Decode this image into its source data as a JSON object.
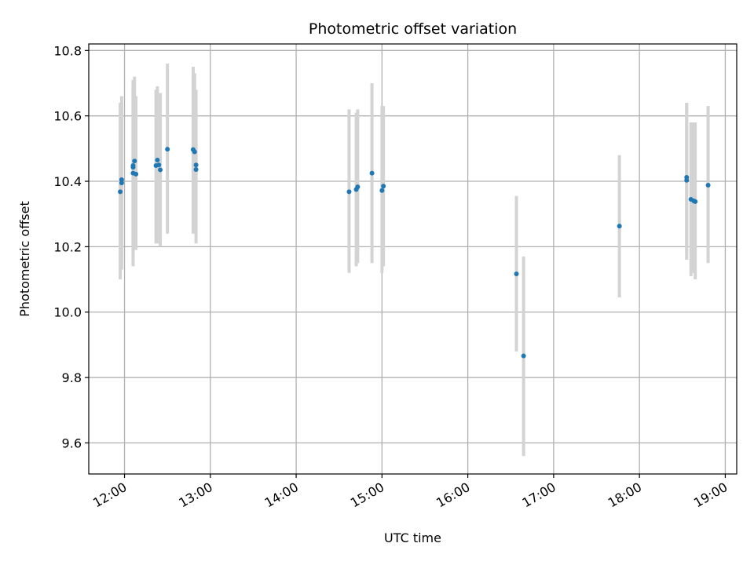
{
  "chart_data": {
    "type": "scatter",
    "title": "Photometric offset variation",
    "xlabel": "UTC time",
    "ylabel": "Photometric offset",
    "xlim": [
      "11:35",
      "19:08"
    ],
    "ylim": [
      9.505,
      10.82
    ],
    "grid": true,
    "x_ticks": [
      "12:00",
      "13:00",
      "14:00",
      "15:00",
      "16:00",
      "17:00",
      "18:00",
      "19:00"
    ],
    "y_ticks": [
      "9.6",
      "9.8",
      "10.0",
      "10.2",
      "10.4",
      "10.6",
      "10.8"
    ],
    "colors": {
      "points": "#1f77b4",
      "error_bars": "#d3d3d3",
      "grid": "#b0b0b0"
    },
    "series": [
      {
        "points": [
          {
            "x": "11:57",
            "y": 10.368,
            "ylow": 10.1,
            "yhigh": 10.64
          },
          {
            "x": "11:58",
            "y": 10.395,
            "ylow": 10.13,
            "yhigh": 10.66
          },
          {
            "x": "11:58",
            "y": 10.405,
            "ylow": 10.17,
            "yhigh": 10.64
          },
          {
            "x": "12:06",
            "y": 10.443,
            "ylow": 10.16,
            "yhigh": 10.71
          },
          {
            "x": "12:06",
            "y": 10.448,
            "ylow": 10.18,
            "yhigh": 10.7
          },
          {
            "x": "12:06",
            "y": 10.425,
            "ylow": 10.14,
            "yhigh": 10.7
          },
          {
            "x": "12:07",
            "y": 10.462,
            "ylow": 10.2,
            "yhigh": 10.72
          },
          {
            "x": "12:08",
            "y": 10.422,
            "ylow": 10.19,
            "yhigh": 10.66
          },
          {
            "x": "12:22",
            "y": 10.448,
            "ylow": 10.21,
            "yhigh": 10.68
          },
          {
            "x": "12:23",
            "y": 10.465,
            "ylow": 10.23,
            "yhigh": 10.69
          },
          {
            "x": "12:24",
            "y": 10.45,
            "ylow": 10.21,
            "yhigh": 10.67
          },
          {
            "x": "12:25",
            "y": 10.435,
            "ylow": 10.2,
            "yhigh": 10.67
          },
          {
            "x": "12:30",
            "y": 10.498,
            "ylow": 10.24,
            "yhigh": 10.76
          },
          {
            "x": "12:48",
            "y": 10.497,
            "ylow": 10.24,
            "yhigh": 10.75
          },
          {
            "x": "12:49",
            "y": 10.49,
            "ylow": 10.25,
            "yhigh": 10.73
          },
          {
            "x": "12:50",
            "y": 10.45,
            "ylow": 10.21,
            "yhigh": 10.68
          },
          {
            "x": "12:50",
            "y": 10.436,
            "ylow": 10.23,
            "yhigh": 10.62
          },
          {
            "x": "14:37",
            "y": 10.368,
            "ylow": 10.12,
            "yhigh": 10.62
          },
          {
            "x": "14:42",
            "y": 10.375,
            "ylow": 10.14,
            "yhigh": 10.61
          },
          {
            "x": "14:43",
            "y": 10.383,
            "ylow": 10.15,
            "yhigh": 10.62
          },
          {
            "x": "14:53",
            "y": 10.425,
            "ylow": 10.15,
            "yhigh": 10.7
          },
          {
            "x": "15:00",
            "y": 10.372,
            "ylow": 10.12,
            "yhigh": 10.63
          },
          {
            "x": "15:01",
            "y": 10.385,
            "ylow": 10.14,
            "yhigh": 10.63
          },
          {
            "x": "16:34",
            "y": 10.117,
            "ylow": 9.88,
            "yhigh": 10.355
          },
          {
            "x": "16:39",
            "y": 9.866,
            "ylow": 9.56,
            "yhigh": 10.17
          },
          {
            "x": "17:46",
            "y": 10.263,
            "ylow": 10.045,
            "yhigh": 10.48
          },
          {
            "x": "18:33",
            "y": 10.403,
            "ylow": 10.16,
            "yhigh": 10.64
          },
          {
            "x": "18:33",
            "y": 10.412,
            "ylow": 10.18,
            "yhigh": 10.64
          },
          {
            "x": "18:36",
            "y": 10.345,
            "ylow": 10.11,
            "yhigh": 10.58
          },
          {
            "x": "18:38",
            "y": 10.34,
            "ylow": 10.12,
            "yhigh": 10.58
          },
          {
            "x": "18:39",
            "y": 10.338,
            "ylow": 10.1,
            "yhigh": 10.58
          },
          {
            "x": "18:48",
            "y": 10.388,
            "ylow": 10.15,
            "yhigh": 10.63
          }
        ]
      }
    ]
  }
}
